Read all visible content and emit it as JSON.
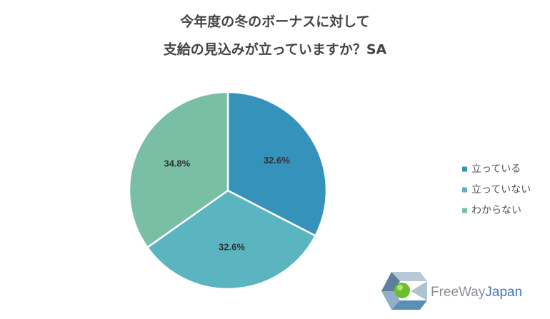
{
  "chart_data": {
    "type": "pie",
    "title": [
      "今年度の冬のボーナスに対して",
      "支給の見込みが立っていますか？SA"
    ],
    "categories": [
      "立っている",
      "立っていない",
      "わからない"
    ],
    "values": [
      32.6,
      32.6,
      34.8
    ],
    "value_labels": [
      "32.6%",
      "32.6%",
      "34.8%"
    ],
    "colors": [
      "#3593bb",
      "#5bb5c1",
      "#78bfa6"
    ],
    "legend": "right",
    "logo": [
      "FreeWay",
      "Japan"
    ]
  }
}
